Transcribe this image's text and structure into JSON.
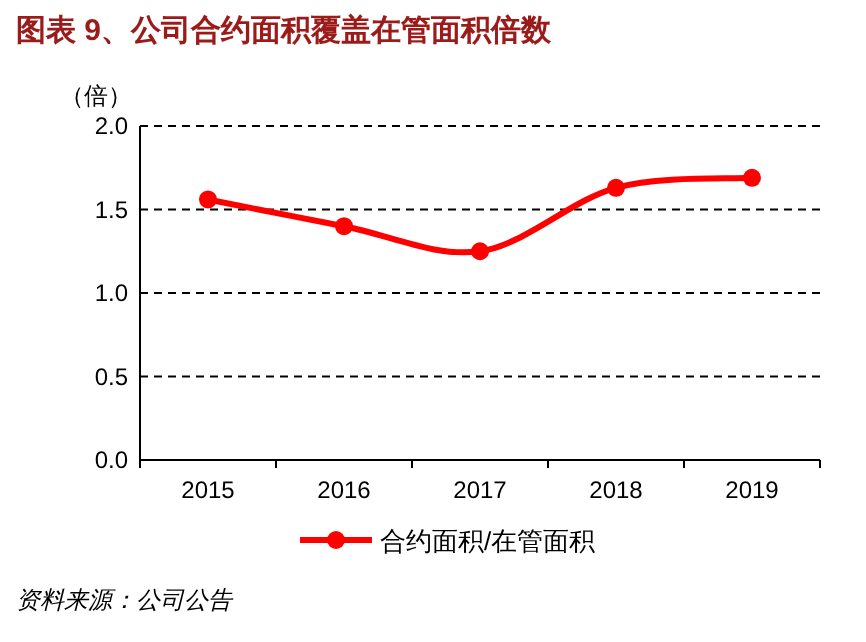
{
  "chart_data": {
    "type": "line",
    "title": "图表 9、公司合约面积覆盖在管面积倍数",
    "ylabel": "（倍）",
    "categories": [
      "2015",
      "2016",
      "2017",
      "2018",
      "2019"
    ],
    "series": [
      {
        "name": "合约面积/在管面积",
        "color": "#ff0000",
        "values": [
          1.56,
          1.4,
          1.25,
          1.63,
          1.69
        ]
      }
    ],
    "ylim": [
      0,
      2
    ],
    "yticks": [
      {
        "value": 0,
        "label": "0.0"
      },
      0.5,
      {
        "value": 1,
        "label": "1.0"
      },
      1.5,
      {
        "value": 2,
        "label": "2.0"
      }
    ],
    "grid": "y",
    "legend": "bottom",
    "marker": "circle",
    "line_style": "solid",
    "annotations": [
      "资料来源：公司公告"
    ]
  }
}
